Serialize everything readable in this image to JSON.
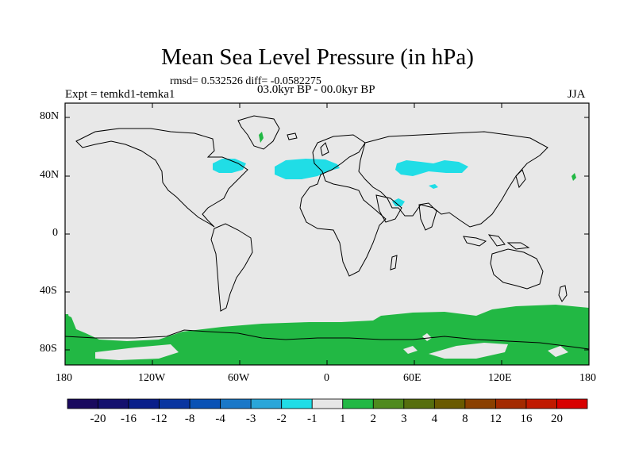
{
  "title": "Mean Sea Level Pressure (in hPa)",
  "stats": "rmsd= 0.532526 diff= -0.0582275",
  "experiment": "Expt = temkd1-temka1",
  "period": "03.0kyr BP - 00.0kyr BP",
  "season": "JJA",
  "lat_labels": [
    "80N",
    "40N",
    "0",
    "40S",
    "80S"
  ],
  "lon_labels": [
    "180",
    "120W",
    "60W",
    "0",
    "60E",
    "120E",
    "180"
  ],
  "colorbar": {
    "labels": [
      "-20",
      "-16",
      "-12",
      "-8",
      "-4",
      "-3",
      "-2",
      "-1",
      "1",
      "2",
      "3",
      "4",
      "8",
      "12",
      "16",
      "20"
    ],
    "colors": [
      "#1a0a5e",
      "#14106e",
      "#0a1f8a",
      "#0a35a0",
      "#0a52b5",
      "#1a78c8",
      "#2aa6d9",
      "#20dde6",
      "#e6e6e6",
      "#22b844",
      "#4f8a1e",
      "#566e0e",
      "#6a5a00",
      "#8a4000",
      "#a32a00",
      "#c01a00",
      "#d80000"
    ]
  },
  "colors": {
    "background": "#e8e8e8",
    "positive": "#22b844",
    "negative": "#20dde6"
  }
}
